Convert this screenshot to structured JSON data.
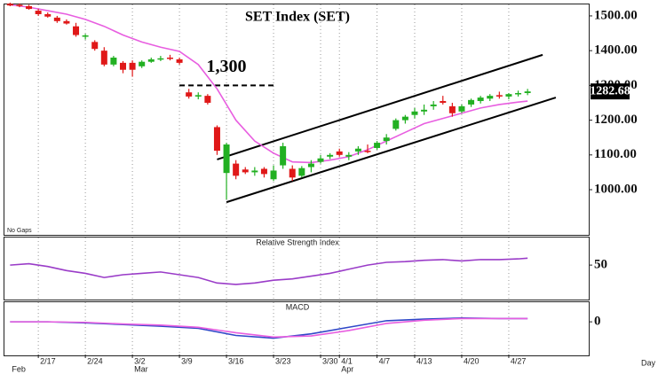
{
  "chart_data": [
    {
      "type": "candlestick",
      "title": "SET Index (SET)",
      "note": "No Gaps",
      "xlim": [
        -0.6,
        61.5
      ],
      "ylim": [
        870,
        1533
      ],
      "yticks": [
        {
          "value": 1000,
          "label": "1000.00"
        },
        {
          "value": 1100,
          "label": "1100.00"
        },
        {
          "value": 1200,
          "label": "1200.00"
        },
        {
          "value": 1300,
          "label": "1300.00"
        },
        {
          "value": 1400,
          "label": "1400.00"
        },
        {
          "value": 1500,
          "label": "1500.00"
        }
      ],
      "up_color": "#22b022",
      "down_color": "#e01818",
      "open": [
        1535,
        1532,
        1528,
        1515,
        1505,
        1495,
        1485,
        1470,
        1440,
        1425,
        1400,
        1360,
        1365,
        1365,
        1355,
        1368,
        1375,
        1380,
        1375,
        1280,
        1268,
        1270,
        1180,
        1048,
        1075,
        1058,
        1050,
        1060,
        1030,
        1070,
        1060,
        1040,
        1065,
        1080,
        1095,
        1110,
        1095,
        1110,
        1112,
        1120,
        1140,
        1175,
        1200,
        1215,
        1225,
        1240,
        1255,
        1240,
        1225,
        1245,
        1255,
        1262,
        1272,
        1268,
        1275,
        1278
      ],
      "high": [
        1538,
        1536,
        1532,
        1520,
        1510,
        1500,
        1490,
        1480,
        1448,
        1430,
        1410,
        1385,
        1370,
        1372,
        1372,
        1380,
        1385,
        1388,
        1380,
        1290,
        1280,
        1275,
        1185,
        1135,
        1085,
        1065,
        1065,
        1065,
        1070,
        1135,
        1070,
        1068,
        1085,
        1100,
        1105,
        1118,
        1108,
        1125,
        1130,
        1140,
        1160,
        1205,
        1215,
        1235,
        1245,
        1255,
        1270,
        1250,
        1245,
        1262,
        1270,
        1275,
        1282,
        1278,
        1285,
        1290
      ],
      "low": [
        1528,
        1525,
        1518,
        1500,
        1495,
        1480,
        1475,
        1440,
        1432,
        1400,
        1355,
        1355,
        1335,
        1325,
        1350,
        1365,
        1370,
        1372,
        1360,
        1262,
        1260,
        1245,
        1100,
        972,
        1030,
        1045,
        1040,
        1035,
        1025,
        1060,
        1025,
        1035,
        1050,
        1075,
        1088,
        1095,
        1085,
        1100,
        1105,
        1115,
        1130,
        1170,
        1190,
        1205,
        1215,
        1230,
        1245,
        1210,
        1220,
        1238,
        1248,
        1255,
        1262,
        1260,
        1268,
        1272
      ],
      "close": [
        1530,
        1528,
        1520,
        1505,
        1498,
        1485,
        1478,
        1445,
        1444,
        1405,
        1360,
        1380,
        1345,
        1345,
        1368,
        1375,
        1378,
        1378,
        1365,
        1268,
        1272,
        1250,
        1112,
        1130,
        1040,
        1050,
        1055,
        1045,
        1055,
        1125,
        1035,
        1062,
        1075,
        1090,
        1100,
        1100,
        1100,
        1118,
        1110,
        1135,
        1150,
        1200,
        1210,
        1225,
        1230,
        1245,
        1250,
        1220,
        1240,
        1258,
        1265,
        1270,
        1268,
        1275,
        1278,
        1282.68
      ],
      "last_label": "1282.68",
      "series": [
        {
          "color": "#e85ee0",
          "x": [
            0,
            2,
            4,
            6,
            8,
            10,
            12,
            14,
            16,
            18,
            20,
            22,
            24,
            26,
            28,
            30,
            32,
            34,
            36,
            38,
            40,
            42,
            44,
            46,
            48,
            50,
            52,
            54,
            55
          ],
          "values": [
            1532,
            1525,
            1515,
            1505,
            1490,
            1470,
            1445,
            1425,
            1410,
            1398,
            1360,
            1290,
            1200,
            1140,
            1105,
            1080,
            1078,
            1085,
            1095,
            1115,
            1140,
            1165,
            1190,
            1205,
            1220,
            1235,
            1245,
            1252,
            1255
          ]
        }
      ],
      "channel": [
        {
          "x": [
            22,
            56.6
          ],
          "y": [
            1087,
            1388
          ]
        },
        {
          "x": [
            23,
            58
          ],
          "y": [
            964,
            1265
          ]
        }
      ],
      "level": {
        "value": 1300,
        "label": "1,300",
        "x": [
          18,
          28
        ]
      }
    },
    {
      "type": "line",
      "title": "Relative Strength Index",
      "xlim": [
        -0.6,
        61.5
      ],
      "ylim": [
        0,
        90
      ],
      "yticks": [
        50
      ],
      "series": [
        {
          "color": "#9a3cc8",
          "x": [
            0,
            2,
            4,
            6,
            8,
            10,
            12,
            14,
            16,
            18,
            20,
            22,
            24,
            26,
            28,
            30,
            32,
            34,
            36,
            38,
            40,
            42,
            44,
            46,
            48,
            50,
            52,
            54,
            55
          ],
          "values": [
            50,
            52,
            48,
            42,
            38,
            32,
            36,
            38,
            40,
            36,
            32,
            24,
            22,
            24,
            28,
            30,
            34,
            38,
            44,
            50,
            54,
            55,
            57,
            58,
            56,
            58,
            58,
            59,
            60
          ]
        }
      ]
    },
    {
      "type": "line",
      "title": "MACD",
      "xlabel": "Day",
      "xlim": [
        -0.6,
        61.5
      ],
      "ylim": [
        -60,
        36
      ],
      "yticks": [
        0
      ],
      "xticks": [
        {
          "value": 3,
          "label": "2/17"
        },
        {
          "value": 8,
          "label": "2/24"
        },
        {
          "value": 13,
          "label": "3/2"
        },
        {
          "value": 18,
          "label": "3/9"
        },
        {
          "value": 23,
          "label": "3/16"
        },
        {
          "value": 28,
          "label": "3/23"
        },
        {
          "value": 33,
          "label": "3/30"
        },
        {
          "value": 35,
          "label": "4/1"
        },
        {
          "value": 39,
          "label": "4/7"
        },
        {
          "value": 43,
          "label": "4/13"
        },
        {
          "value": 48,
          "label": "4/20"
        },
        {
          "value": 53,
          "label": "4/27"
        }
      ],
      "month_ticks": [
        {
          "value": 0,
          "label": "Feb"
        },
        {
          "value": 13,
          "label": "Mar"
        },
        {
          "value": 35,
          "label": "Apr"
        }
      ],
      "series": [
        {
          "color": "#3048c8",
          "x": [
            0,
            4,
            8,
            12,
            16,
            20,
            24,
            28,
            32,
            36,
            40,
            44,
            48,
            52,
            55
          ],
          "values": [
            0,
            0,
            -2,
            -5,
            -8,
            -12,
            -25,
            -30,
            -22,
            -10,
            2,
            5,
            7,
            6,
            6
          ]
        },
        {
          "color": "#e85ee0",
          "x": [
            0,
            4,
            8,
            12,
            16,
            20,
            24,
            28,
            32,
            36,
            40,
            44,
            48,
            52,
            55
          ],
          "values": [
            0,
            0,
            -1,
            -4,
            -6,
            -10,
            -20,
            -28,
            -26,
            -16,
            -3,
            3,
            6,
            6,
            6
          ]
        }
      ]
    }
  ]
}
